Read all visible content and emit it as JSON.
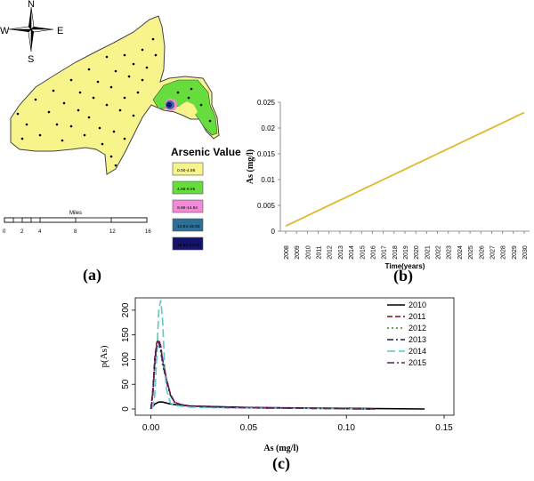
{
  "compass": {
    "n": "N",
    "s": "S",
    "e": "E",
    "w": "W"
  },
  "map": {
    "legend_title": "Arsenic Value",
    "legend_items": [
      {
        "label": "0.00-4.98",
        "color": "#f7f48c"
      },
      {
        "label": "4.98-9.96",
        "color": "#66dd3c"
      },
      {
        "label": "9.96-14.94",
        "color": "#f28ad8"
      },
      {
        "label": "14.94-19.92",
        "color": "#2e6f95"
      },
      {
        "label": "19.92-24.91",
        "color": "#14146e"
      }
    ],
    "scale_title": "Miles",
    "scale_ticks": [
      "0",
      "2",
      "4",
      "8",
      "12",
      "16"
    ]
  },
  "captions": {
    "a": "(a)",
    "b": "(b)",
    "c": "(c)"
  },
  "chart_data": [
    {
      "type": "line",
      "title": "",
      "xlabel": "Time(years)",
      "ylabel": "As (mg/l)",
      "categories": [
        "2008",
        "2009",
        "2010",
        "2011",
        "2012",
        "2013",
        "2014",
        "2015",
        "2016",
        "2017",
        "2018",
        "2019",
        "2020",
        "2021",
        "2022",
        "2023",
        "2024",
        "2025",
        "2026",
        "2027",
        "2028",
        "2029",
        "2030"
      ],
      "series": [
        {
          "name": "As",
          "color": "#e0b92a",
          "values": [
            0.001,
            0.002,
            0.003,
            0.004,
            0.005,
            0.006,
            0.007,
            0.008,
            0.009,
            0.01,
            0.011,
            0.012,
            0.013,
            0.014,
            0.015,
            0.016,
            0.017,
            0.018,
            0.019,
            0.02,
            0.021,
            0.022,
            0.023
          ]
        }
      ],
      "ylim": [
        0,
        0.025
      ],
      "yticks": [
        "0",
        "0.005",
        "0.01",
        "0.015",
        "0.02",
        "0.025"
      ]
    },
    {
      "type": "line",
      "title": "",
      "xlabel": "As (mg/l)",
      "ylabel": "p(As)",
      "xlim": [
        -0.008,
        0.155
      ],
      "ylim": [
        0,
        225
      ],
      "xticks": [
        "0.00",
        "0.05",
        "0.10",
        "0.15"
      ],
      "yticks": [
        "0",
        "50",
        "100",
        "150",
        "200"
      ],
      "legend_position": "top-right",
      "series": [
        {
          "name": "2010",
          "color": "#000000",
          "dash": "",
          "x": [
            0,
            0.002,
            0.004,
            0.006,
            0.008,
            0.01,
            0.014,
            0.02,
            0.03,
            0.05,
            0.08,
            0.11,
            0.14
          ],
          "y": [
            0,
            10,
            14,
            14,
            12,
            10,
            8,
            6,
            5,
            3,
            2,
            1,
            0
          ]
        },
        {
          "name": "2011",
          "color": "#8b0a0a",
          "dash": "6,3",
          "x": [
            0,
            0.001,
            0.002,
            0.003,
            0.004,
            0.005,
            0.006,
            0.008,
            0.01,
            0.012,
            0.014,
            0.018,
            0.025,
            0.04,
            0.06,
            0.09,
            0.115
          ],
          "y": [
            0,
            40,
            105,
            135,
            140,
            125,
            100,
            60,
            30,
            15,
            10,
            7,
            5,
            3,
            2,
            1,
            0
          ]
        },
        {
          "name": "2012",
          "color": "#2a8a2a",
          "dash": "2,3",
          "x": [
            0,
            0.001,
            0.002,
            0.003,
            0.004,
            0.005,
            0.006,
            0.008,
            0.01,
            0.012,
            0.015,
            0.02,
            0.035,
            0.06,
            0.09,
            0.115
          ],
          "y": [
            0,
            30,
            90,
            125,
            130,
            115,
            90,
            55,
            28,
            14,
            9,
            6,
            4,
            2,
            1,
            0
          ]
        },
        {
          "name": "2013",
          "color": "#1a1a4a",
          "dash": "7,3,2,3",
          "x": [
            0,
            0.001,
            0.002,
            0.003,
            0.004,
            0.005,
            0.006,
            0.008,
            0.01,
            0.012,
            0.015,
            0.02,
            0.035,
            0.06,
            0.09,
            0.115
          ],
          "y": [
            0,
            35,
            100,
            130,
            135,
            120,
            95,
            55,
            28,
            14,
            9,
            6,
            4,
            2,
            1,
            0
          ]
        },
        {
          "name": "2014",
          "color": "#5cc8c8",
          "dash": "9,4",
          "x": [
            0,
            0.001,
            0.002,
            0.003,
            0.004,
            0.005,
            0.006,
            0.007,
            0.008,
            0.01,
            0.012,
            0.015,
            0.02,
            0.04,
            0.08,
            0.11
          ],
          "y": [
            0,
            5,
            30,
            110,
            200,
            220,
            180,
            90,
            40,
            12,
            8,
            6,
            4,
            2,
            1,
            0
          ]
        },
        {
          "name": "2015",
          "color": "#6a1a6a",
          "dash": "8,3,2,3",
          "x": [
            0,
            0.001,
            0.002,
            0.003,
            0.004,
            0.005,
            0.006,
            0.008,
            0.01,
            0.012,
            0.015,
            0.02,
            0.035,
            0.06,
            0.09,
            0.11
          ],
          "y": [
            0,
            30,
            95,
            130,
            140,
            128,
            100,
            60,
            30,
            14,
            9,
            6,
            4,
            2,
            1,
            0
          ]
        }
      ]
    }
  ]
}
